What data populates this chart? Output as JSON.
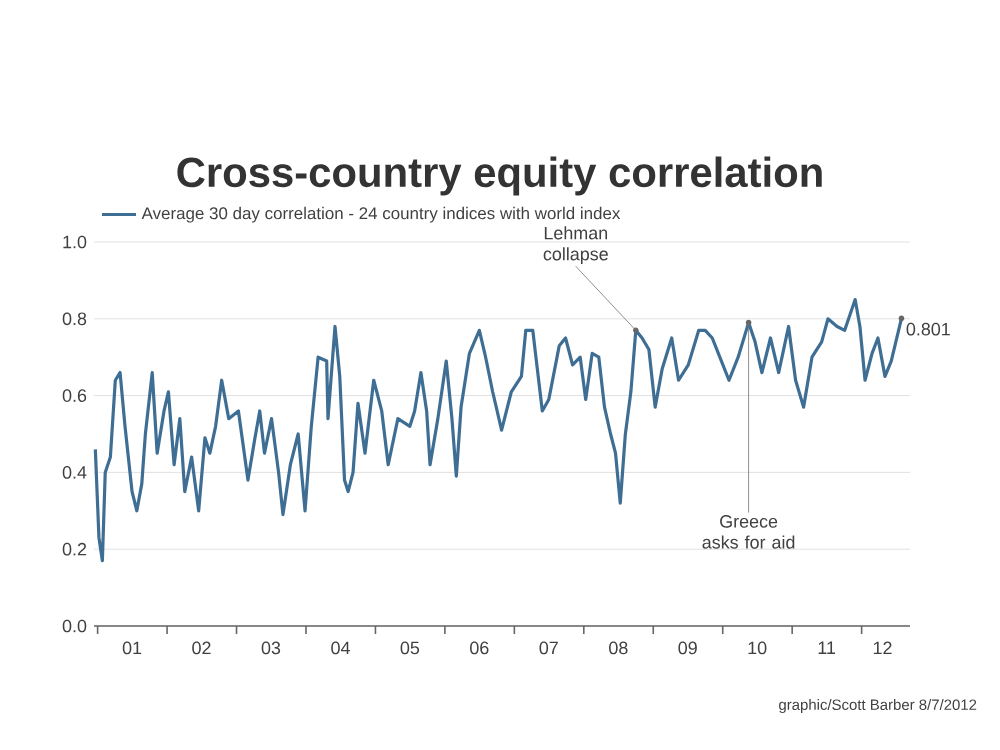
{
  "chart_data": {
    "type": "line",
    "title": "Cross-country equity correlation",
    "series": [
      {
        "name": "Average 30 day correlation - 24 country indices with world index",
        "color": "#3f6e94",
        "x": [
          "2000-12-20",
          "2001-01-08",
          "2001-01-26",
          "2001-02-10",
          "2001-03-09",
          "2001-04-04",
          "2001-04-29",
          "2001-05-25",
          "2001-07-01",
          "2001-07-26",
          "2001-08-21",
          "2001-09-09",
          "2001-10-15",
          "2001-11-10",
          "2001-12-16",
          "2002-01-08",
          "2002-02-07",
          "2002-03-09",
          "2002-04-04",
          "2002-05-10",
          "2002-06-16",
          "2002-07-19",
          "2002-08-14",
          "2002-09-13",
          "2002-10-15",
          "2002-11-21",
          "2003-01-11",
          "2003-03-02",
          "2003-04-08",
          "2003-05-03",
          "2003-05-28",
          "2003-07-04",
          "2003-08-10",
          "2003-09-02",
          "2003-10-11",
          "2003-11-21",
          "2003-12-27",
          "2004-01-29",
          "2004-03-05",
          "2004-04-19",
          "2004-04-26",
          "2004-06-02",
          "2004-06-27",
          "2004-07-22",
          "2004-08-10",
          "2004-09-05",
          "2004-10-01",
          "2004-11-07",
          "2004-12-23",
          "2005-02-03",
          "2005-03-09",
          "2005-04-29",
          "2005-07-01",
          "2005-07-26",
          "2005-08-28",
          "2005-09-27",
          "2005-10-15",
          "2005-11-25",
          "2006-01-08",
          "2006-02-07",
          "2006-03-02",
          "2006-03-27",
          "2006-05-10",
          "2006-07-01",
          "2006-08-03",
          "2006-09-09",
          "2006-10-26",
          "2006-12-16",
          "2007-02-07",
          "2007-03-02",
          "2007-04-08",
          "2007-04-22",
          "2007-05-28",
          "2007-07-01",
          "2007-08-25",
          "2007-09-27",
          "2007-11-03",
          "2007-12-13",
          "2008-01-11",
          "2008-02-14",
          "2008-03-20",
          "2008-04-19",
          "2008-05-21",
          "2008-06-16",
          "2008-07-11",
          "2008-08-07",
          "2008-09-05",
          "2008-10-01",
          "2008-11-03",
          "2008-12-09",
          "2009-01-11",
          "2009-02-17",
          "2009-04-08",
          "2009-05-14",
          "2009-07-04",
          "2009-08-28",
          "2009-10-01",
          "2009-11-07",
          "2009-12-09",
          "2010-02-03",
          "2010-03-23",
          "2010-05-17",
          "2010-06-20",
          "2010-07-26",
          "2010-09-09",
          "2010-10-22",
          "2010-12-13",
          "2011-01-19",
          "2011-03-02",
          "2011-04-15",
          "2011-06-05",
          "2011-07-08",
          "2011-08-25",
          "2011-10-04",
          "2011-11-28",
          "2011-12-23",
          "2012-01-19",
          "2012-02-25",
          "2012-03-27",
          "2012-05-03",
          "2012-06-05",
          "2012-07-29"
        ],
        "values": [
          0.46,
          0.23,
          0.17,
          0.4,
          0.44,
          0.64,
          0.66,
          0.52,
          0.35,
          0.3,
          0.37,
          0.5,
          0.66,
          0.45,
          0.56,
          0.61,
          0.42,
          0.54,
          0.35,
          0.44,
          0.3,
          0.49,
          0.45,
          0.52,
          0.64,
          0.54,
          0.56,
          0.38,
          0.49,
          0.56,
          0.45,
          0.54,
          0.4,
          0.29,
          0.42,
          0.5,
          0.3,
          0.52,
          0.7,
          0.69,
          0.54,
          0.78,
          0.65,
          0.38,
          0.35,
          0.4,
          0.58,
          0.45,
          0.64,
          0.56,
          0.42,
          0.54,
          0.52,
          0.56,
          0.66,
          0.56,
          0.42,
          0.54,
          0.69,
          0.54,
          0.39,
          0.57,
          0.71,
          0.77,
          0.7,
          0.61,
          0.51,
          0.61,
          0.65,
          0.77,
          0.77,
          0.71,
          0.56,
          0.59,
          0.73,
          0.75,
          0.68,
          0.7,
          0.59,
          0.71,
          0.7,
          0.57,
          0.5,
          0.45,
          0.32,
          0.5,
          0.61,
          0.77,
          0.75,
          0.72,
          0.57,
          0.67,
          0.75,
          0.64,
          0.68,
          0.77,
          0.77,
          0.75,
          0.71,
          0.64,
          0.7,
          0.79,
          0.74,
          0.66,
          0.75,
          0.66,
          0.78,
          0.64,
          0.57,
          0.7,
          0.74,
          0.8,
          0.78,
          0.77,
          0.85,
          0.78,
          0.64,
          0.71,
          0.75,
          0.65,
          0.69,
          0.801
        ]
      }
    ],
    "xlim": [
      "2000-12-13",
      "2012-09-12"
    ],
    "ylim": [
      0,
      1
    ],
    "xticks": [
      {
        "value": "2001-01-01",
        "label": null
      },
      {
        "value": "2001-07-01",
        "label": "01"
      },
      {
        "value": "2002-01-01",
        "label": null
      },
      {
        "value": "2002-07-01",
        "label": "02"
      },
      {
        "value": "2003-01-01",
        "label": null
      },
      {
        "value": "2003-07-01",
        "label": "03"
      },
      {
        "value": "2004-01-01",
        "label": null
      },
      {
        "value": "2004-07-01",
        "label": "04"
      },
      {
        "value": "2005-01-01",
        "label": null
      },
      {
        "value": "2005-07-01",
        "label": "05"
      },
      {
        "value": "2006-01-01",
        "label": null
      },
      {
        "value": "2006-07-01",
        "label": "06"
      },
      {
        "value": "2007-01-01",
        "label": null
      },
      {
        "value": "2007-07-01",
        "label": "07"
      },
      {
        "value": "2008-01-01",
        "label": null
      },
      {
        "value": "2008-07-01",
        "label": "08"
      },
      {
        "value": "2009-01-01",
        "label": null
      },
      {
        "value": "2009-07-01",
        "label": "09"
      },
      {
        "value": "2010-01-01",
        "label": null
      },
      {
        "value": "2010-07-01",
        "label": "10"
      },
      {
        "value": "2011-01-01",
        "label": null
      },
      {
        "value": "2011-07-01",
        "label": "11"
      },
      {
        "value": "2012-01-01",
        "label": null
      },
      {
        "value": "2012-04-20",
        "label": "12"
      }
    ],
    "yticks": [
      {
        "value": 0,
        "label": "0.0"
      },
      {
        "value": 0.2,
        "label": "0.2"
      },
      {
        "value": 0.4,
        "label": "0.4"
      },
      {
        "value": 0.6,
        "label": "0.6"
      },
      {
        "value": 0.8,
        "label": "0.8"
      },
      {
        "value": 1,
        "label": "1.0"
      }
    ],
    "grid": "y",
    "legend": "top left",
    "line_style": "solid",
    "marker": "none",
    "annotations": [
      {
        "text": "Lehman collapse",
        "x": "2008-10-01",
        "y": 0.77
      },
      {
        "text": "Greece asks for aid",
        "x": "2010-05-17",
        "y": 0.79
      },
      {
        "text": "0.801",
        "x": "2012-07-29",
        "y": 0.801
      },
      "graphic/Scott Barber 8/7/2012"
    ]
  }
}
